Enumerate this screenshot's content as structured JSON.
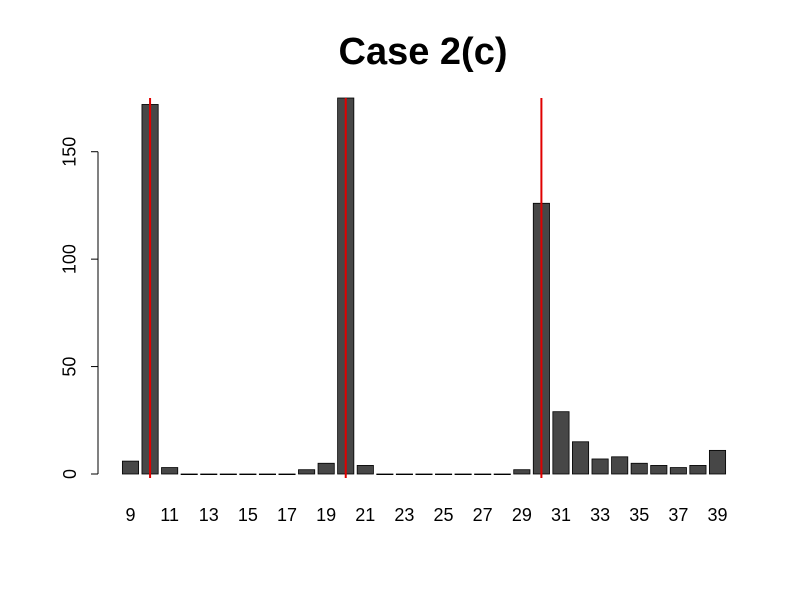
{
  "chart_data": {
    "type": "bar",
    "title": "Case 2(c)",
    "xlabel": "",
    "ylabel": "",
    "categories": [
      9,
      10,
      11,
      12,
      13,
      14,
      15,
      16,
      17,
      18,
      19,
      20,
      21,
      22,
      23,
      24,
      25,
      26,
      27,
      28,
      29,
      30,
      31,
      32,
      33,
      34,
      35,
      36,
      37,
      38,
      39
    ],
    "x_tick_labels": [
      "9",
      "11",
      "13",
      "15",
      "17",
      "19",
      "21",
      "23",
      "25",
      "27",
      "29",
      "31",
      "33",
      "35",
      "37",
      "39"
    ],
    "values": [
      6,
      172,
      3,
      0,
      0,
      0,
      0,
      0,
      0,
      2,
      5,
      175,
      4,
      0,
      0,
      0,
      0,
      0,
      0,
      0,
      2,
      126,
      29,
      15,
      7,
      8,
      5,
      4,
      3,
      4,
      11
    ],
    "ylim": [
      0,
      175
    ],
    "y_ticks": [
      0,
      50,
      100,
      150
    ],
    "y_tick_labels": [
      "0",
      "50",
      "100",
      "150"
    ],
    "reference_lines_x": [
      10,
      20,
      30
    ],
    "reference_line_color": "#e00000",
    "bar_color": "#474747",
    "grid": false,
    "legend": "none"
  }
}
